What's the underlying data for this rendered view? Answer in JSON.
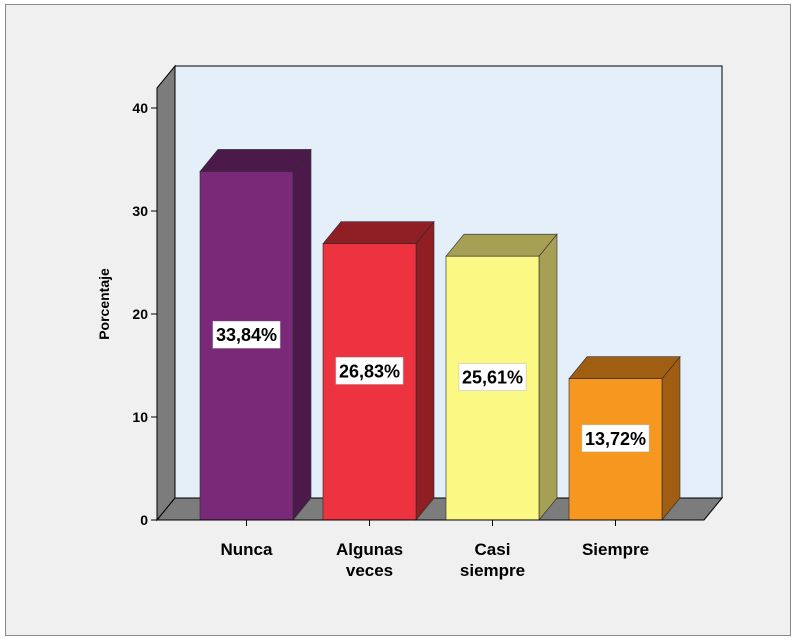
{
  "chart_data": {
    "type": "bar",
    "ylabel": "Porcentaje",
    "xlabel": "",
    "ylim": [
      0,
      40
    ],
    "yticks": [
      0,
      10,
      20,
      30,
      40
    ],
    "grid": false,
    "style": "3d",
    "categories": [
      [
        "Nunca"
      ],
      [
        "Algunas",
        "veces"
      ],
      [
        "Casi",
        "siempre"
      ],
      [
        "Siempre"
      ]
    ],
    "category_names": [
      "Nunca",
      "Algunas veces",
      "Casi siempre",
      "Siempre"
    ],
    "values": [
      33.84,
      26.83,
      25.61,
      13.72
    ],
    "data_labels": [
      "33,84%",
      "26,83%",
      "25,61%",
      "13,72%"
    ],
    "colors": [
      {
        "front": "#7a2878",
        "top": "#4c1a4a",
        "side": "#4c1a4a"
      },
      {
        "front": "#ee3340",
        "top": "#8f1f24",
        "side": "#8f1f24"
      },
      {
        "front": "#fbf884",
        "top": "#a6a054",
        "side": "#a6a054"
      },
      {
        "front": "#f6971f",
        "top": "#a05e12",
        "side": "#a05e12"
      }
    ],
    "plot_background": "#e4effa",
    "frame_background": "#f0f0f0"
  }
}
